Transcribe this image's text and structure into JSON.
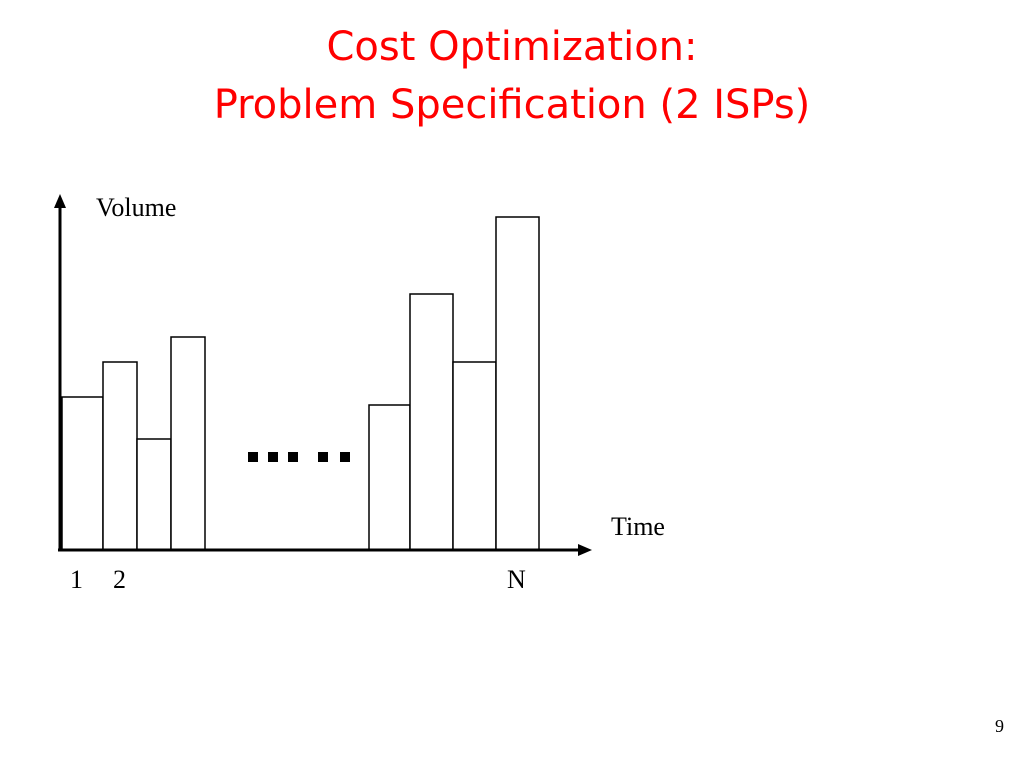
{
  "slide": {
    "title_line1": "Cost Optimization:",
    "title_line2": "Problem Specification (2 ISPs)",
    "page_number": "9"
  },
  "diagram": {
    "y_axis_label": "Volume",
    "x_axis_label": "Time",
    "x_tick_labels": [
      "1",
      "2",
      "N"
    ],
    "ellipsis": ".....",
    "colors": {
      "title": "#ff0000",
      "lines": "#000000",
      "bars": "#ffffff"
    }
  }
}
